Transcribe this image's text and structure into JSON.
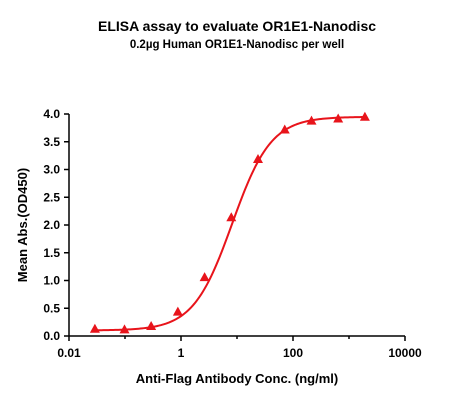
{
  "chart_data": {
    "type": "scatter",
    "title": "ELISA assay to evaluate OR1E1-Nanodisc",
    "subtitle": "0.2µg Human OR1E1-Nanodisc per well",
    "xlabel": "Anti-Flag Antibody Conc. (ng/ml)",
    "ylabel": "Mean Abs.(OD450)",
    "x_scale": "log",
    "xlim": [
      0.01,
      10000
    ],
    "ylim": [
      0.0,
      4.0
    ],
    "x_ticks": [
      {
        "value": 0.01,
        "label": "0.01"
      },
      {
        "value": 1,
        "label": "1"
      },
      {
        "value": 100,
        "label": "100"
      },
      {
        "value": 10000,
        "label": "10000"
      }
    ],
    "y_ticks": [
      {
        "value": 0.0,
        "label": "0.0"
      },
      {
        "value": 0.5,
        "label": "0.5"
      },
      {
        "value": 1.0,
        "label": "1.0"
      },
      {
        "value": 1.5,
        "label": "1.5"
      },
      {
        "value": 2.0,
        "label": "2.0"
      },
      {
        "value": 2.5,
        "label": "2.5"
      },
      {
        "value": 3.0,
        "label": "3.0"
      },
      {
        "value": 3.5,
        "label": "3.5"
      },
      {
        "value": 4.0,
        "label": "4.0"
      }
    ],
    "series": [
      {
        "color": "#e8141b",
        "marker": "triangle",
        "x": [
          0.029,
          0.098,
          0.293,
          0.879,
          2.64,
          7.91,
          23.7,
          71.2,
          214,
          641,
          1922
        ],
        "y": [
          0.13,
          0.12,
          0.18,
          0.44,
          1.06,
          2.14,
          3.19,
          3.72,
          3.88,
          3.92,
          3.95
        ]
      }
    ],
    "fit": {
      "bottom": 0.1,
      "top": 3.95,
      "ec50": 8.2,
      "hill": 1.25
    },
    "grid": false
  }
}
